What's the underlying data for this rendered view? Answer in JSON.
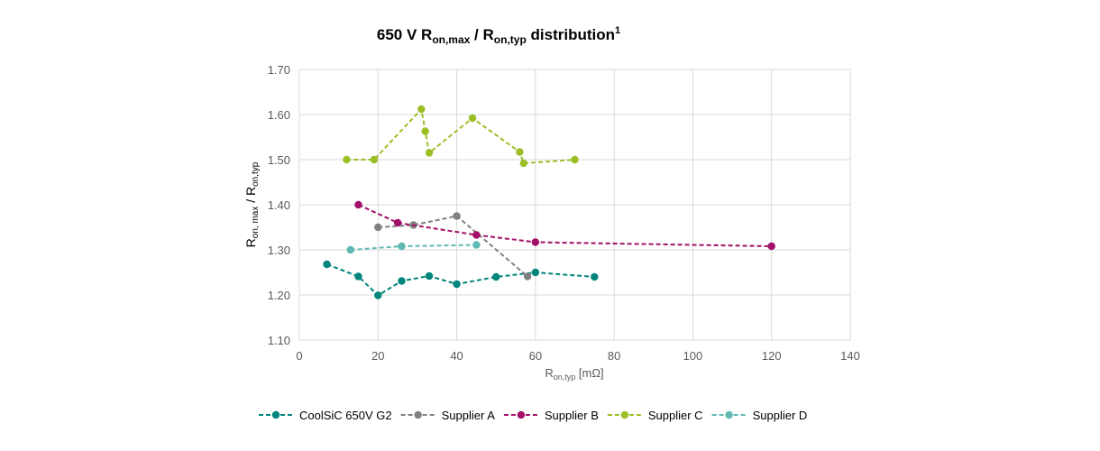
{
  "chart_data": {
    "type": "line",
    "title": {
      "prefix": "650 V R",
      "sub1": "on,max",
      "mid": " / R",
      "sub2": "on,typ",
      "suffix": " distribution",
      "sup": "1"
    },
    "xlabel": {
      "main": "R",
      "sub": "on,typ",
      "unit": " [mΩ]"
    },
    "ylabel": {
      "r1": "R",
      "s1": "on, max",
      "mid": " / R",
      "r2": "R",
      "s2": "on,typ"
    },
    "xlim": [
      0,
      140
    ],
    "ylim": [
      1.1,
      1.7
    ],
    "xticks": [
      0,
      20,
      40,
      60,
      80,
      100,
      120,
      140
    ],
    "yticks": [
      1.1,
      1.2,
      1.3,
      1.4,
      1.5,
      1.6,
      1.7
    ],
    "grid": true,
    "legend_position": "bottom",
    "series": [
      {
        "name": "CoolSiC 650V G2",
        "color": "#00857c",
        "marker": "circle",
        "points": [
          [
            7,
            1.268
          ],
          [
            15,
            1.241
          ],
          [
            20,
            1.199
          ],
          [
            26,
            1.231
          ],
          [
            33,
            1.242
          ],
          [
            40,
            1.224
          ],
          [
            50,
            1.24
          ],
          [
            60,
            1.25
          ],
          [
            75,
            1.24
          ]
        ]
      },
      {
        "name": "Supplier A",
        "color": "#808080",
        "marker": "circle",
        "points": [
          [
            20,
            1.35
          ],
          [
            29,
            1.355
          ],
          [
            40,
            1.375
          ],
          [
            58,
            1.241
          ]
        ]
      },
      {
        "name": "Supplier B",
        "color": "#a3106a",
        "marker": "circle",
        "points": [
          [
            15,
            1.4
          ],
          [
            25,
            1.36
          ],
          [
            45,
            1.333
          ],
          [
            60,
            1.317
          ],
          [
            120,
            1.308
          ]
        ]
      },
      {
        "name": "Supplier C",
        "color": "#9cbf28",
        "marker": "circle",
        "points": [
          [
            12,
            1.5
          ],
          [
            19,
            1.5
          ],
          [
            31,
            1.612
          ],
          [
            32,
            1.563
          ],
          [
            33,
            1.515
          ],
          [
            44,
            1.592
          ],
          [
            56,
            1.517
          ],
          [
            57,
            1.492
          ],
          [
            70,
            1.5
          ]
        ]
      },
      {
        "name": "Supplier D",
        "color": "#5fb8b3",
        "marker": "circle",
        "points": [
          [
            13,
            1.3
          ],
          [
            26,
            1.308
          ],
          [
            45,
            1.311
          ]
        ]
      }
    ]
  }
}
